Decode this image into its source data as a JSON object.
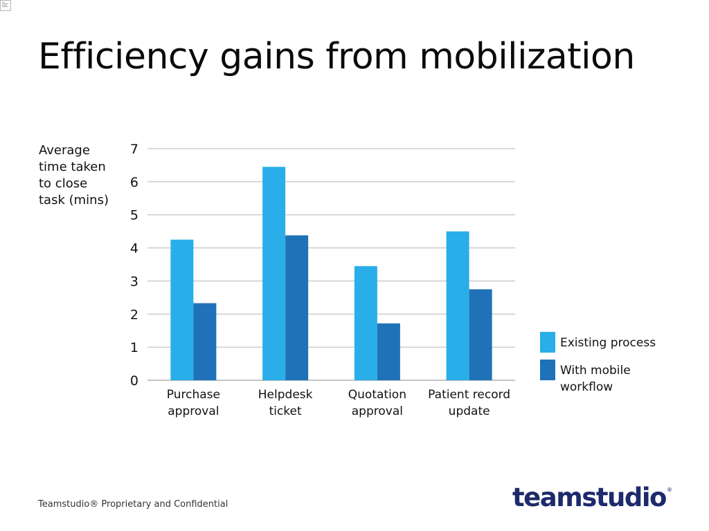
{
  "slide": {
    "title": "Efficiency gains from mobilization",
    "y_caption": "Average time taken to close task (mins)",
    "footer": "Teamstudio® Proprietary and Confidential",
    "logo": {
      "text": "teamstudio",
      "mark": "®",
      "color": "#1d2a6b"
    }
  },
  "chart_data": {
    "type": "bar",
    "title": "",
    "xlabel": "",
    "ylabel": "Average time taken to close task (mins)",
    "ylim": [
      0,
      7
    ],
    "yticks": [
      "0",
      "1",
      "2",
      "3",
      "4",
      "5",
      "6",
      "7"
    ],
    "grid": true,
    "legend_position": "right",
    "categories": [
      [
        "Purchase",
        "approval"
      ],
      [
        "Helpdesk",
        "ticket"
      ],
      [
        "Quotation",
        "approval"
      ],
      [
        "Patient record",
        "update"
      ]
    ],
    "series": [
      {
        "name": "Existing process",
        "color": "#29aee9",
        "values": [
          4.25,
          6.45,
          3.45,
          4.5
        ]
      },
      {
        "name": "With mobile workflow",
        "color": "#1f72b8",
        "values": [
          2.33,
          4.38,
          1.72,
          2.75
        ]
      }
    ]
  }
}
